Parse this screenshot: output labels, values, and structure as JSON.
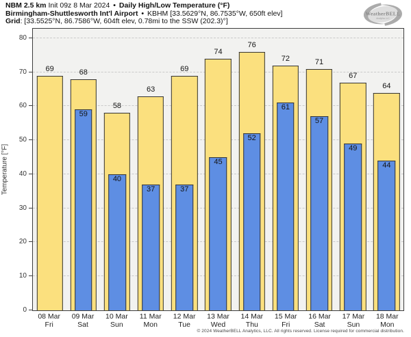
{
  "header": {
    "line1": {
      "model": "NBM 2.5 km",
      "init": " Init 09z 8 Mar 2024 ",
      "sep": "•",
      "title": " Daily High/Low Temperature (°F)"
    },
    "line2": {
      "station": "Birmingham-Shuttlesworth Int'l Airport",
      "sep": "•",
      "meta": " KBHM [33.5629°N, 86.7535°W, 650ft elev]"
    },
    "line3": {
      "label": "Grid",
      "meta": ": [33.5525°N, 86.7586°W, 604ft elev, 0.78mi to the SSW (202.3)°]"
    }
  },
  "logo": {
    "name": "WeatherBELL",
    "sub": "Analytics LLC"
  },
  "chart_data": {
    "type": "bar",
    "title": "Daily High/Low Temperature (°F)",
    "categories": [
      "08 Mar",
      "09 Mar",
      "10 Mar",
      "11 Mar",
      "12 Mar",
      "13 Mar",
      "14 Mar",
      "15 Mar",
      "16 Mar",
      "17 Mar",
      "18 Mar"
    ],
    "weekdays": [
      "Fri",
      "Sat",
      "Sun",
      "Mon",
      "Tue",
      "Wed",
      "Thu",
      "Fri",
      "Sat",
      "Sun",
      "Mon"
    ],
    "series": [
      {
        "name": "Daily High",
        "color": "#FBE07E",
        "values": [
          69,
          68,
          58,
          63,
          69,
          74,
          76,
          72,
          71,
          67,
          64
        ]
      },
      {
        "name": "Daily Low",
        "color": "#5E8EE3",
        "values": [
          null,
          59,
          40,
          37,
          37,
          45,
          52,
          61,
          57,
          49,
          44
        ]
      }
    ],
    "ylabel": "Temperature [°F]",
    "ylim": [
      0,
      82.8
    ],
    "yticks": [
      0,
      10,
      20,
      30,
      40,
      50,
      60,
      70,
      80
    ],
    "grid": "horizontal-dashed",
    "legend": "none"
  },
  "colors": {
    "plot_bg": "#F2F2F0",
    "grid": "#C9C9C9",
    "bar_border": "#333333",
    "axis": "#3C3C3C"
  },
  "footer": {
    "copyright": "© 2024 WeatherBELL Analytics, LLC. All rights reserved. License required for commercial distribution."
  }
}
